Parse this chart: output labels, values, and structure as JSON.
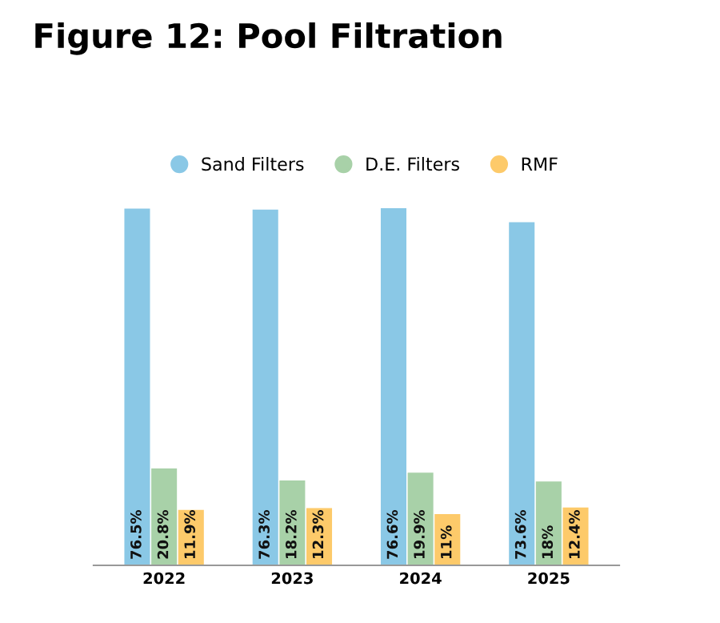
{
  "chart_data": {
    "type": "bar",
    "title": "Figure 12: Pool Filtration",
    "categories": [
      "2022",
      "2023",
      "2024",
      "2025"
    ],
    "series": [
      {
        "name": "Sand Filters",
        "color": "#8ac8e6",
        "values": [
          76.5,
          76.3,
          76.6,
          73.6
        ],
        "value_labels": [
          "76.5%",
          "76.3%",
          "76.6%",
          "73.6%"
        ]
      },
      {
        "name": "D.E. Filters",
        "color": "#a8d1a8",
        "values": [
          20.8,
          18.2,
          19.9,
          18
        ],
        "value_labels": [
          "20.8%",
          "18.2%",
          "19.9%",
          "18%"
        ]
      },
      {
        "name": "RMF",
        "color": "#fdca6a",
        "values": [
          11.9,
          12.3,
          11,
          12.4
        ],
        "value_labels": [
          "11.9%",
          "12.3%",
          "11%",
          "12.4%"
        ]
      }
    ],
    "legend": "top",
    "grid": false
  }
}
